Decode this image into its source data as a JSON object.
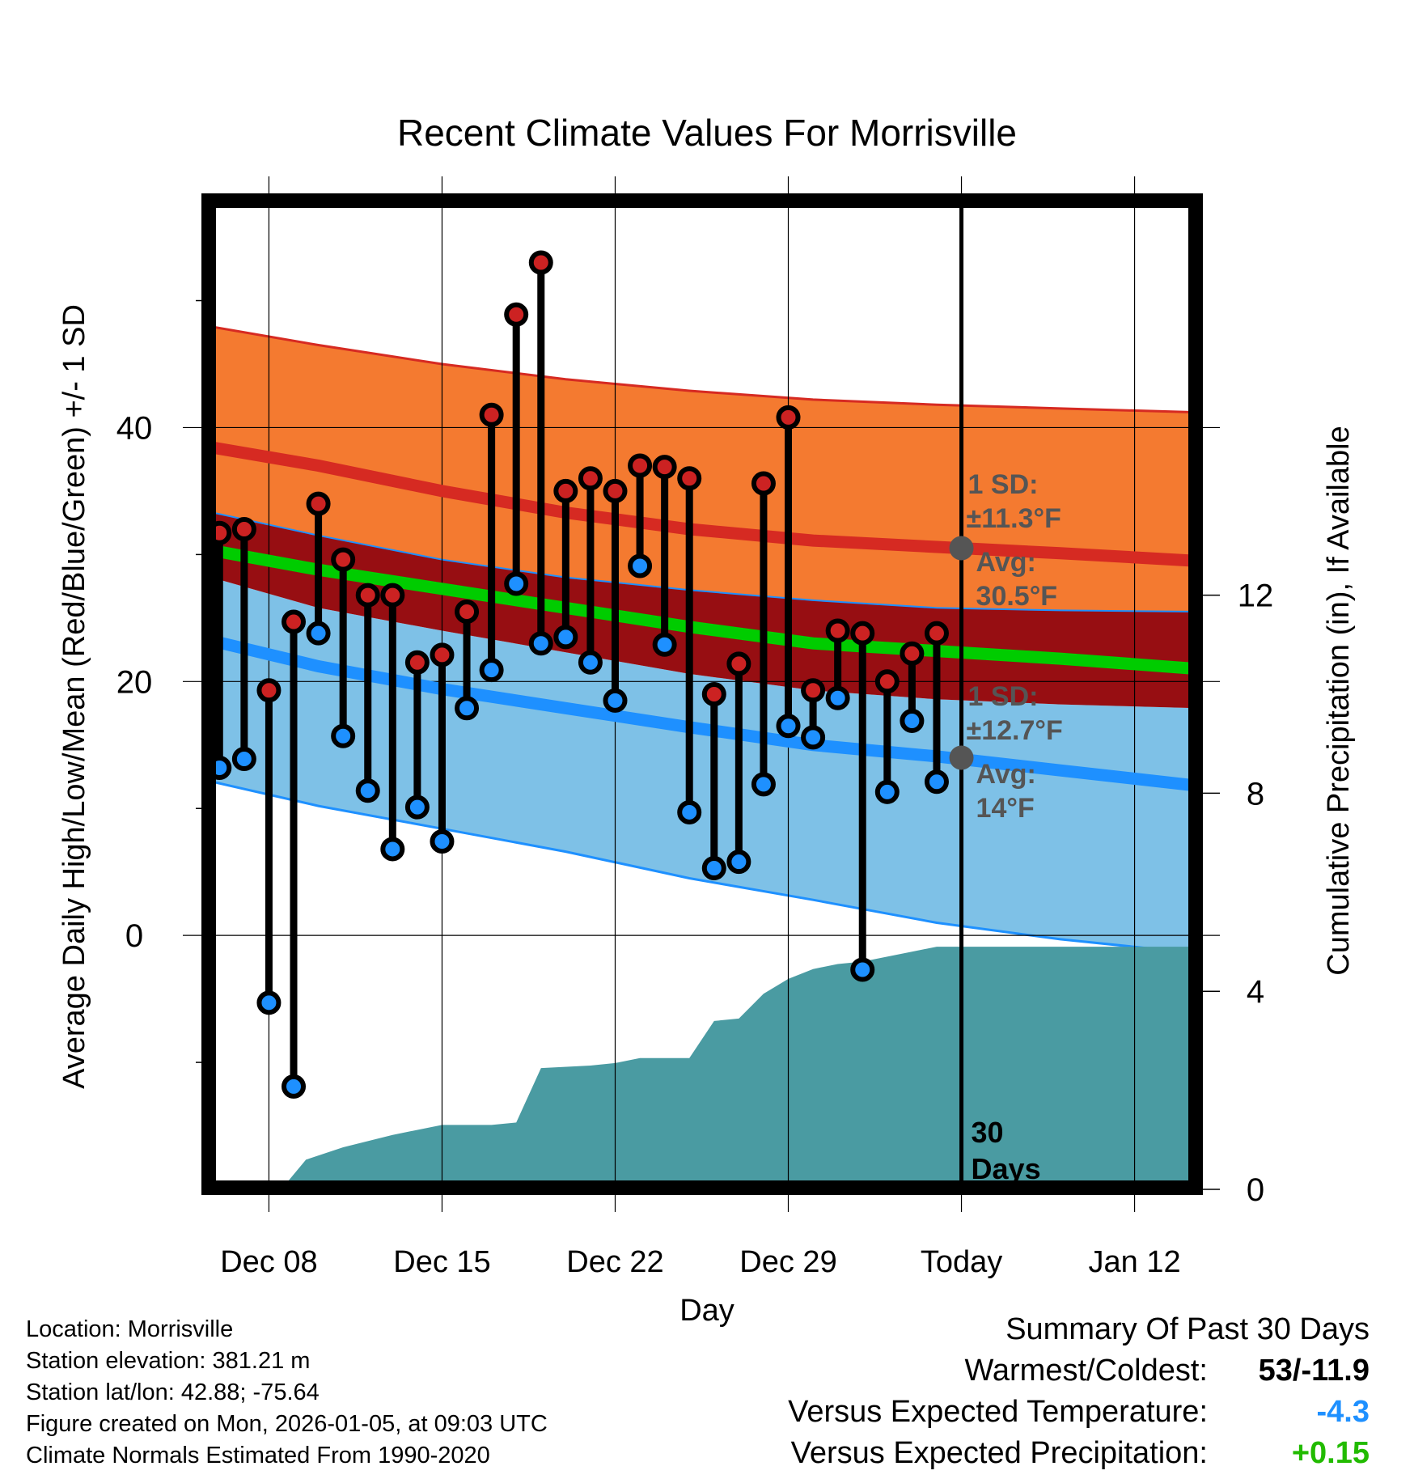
{
  "chart_data": {
    "type": "line",
    "title": "Recent Climate Values For Morrisville",
    "xlabel": "Day",
    "ylabel": "Average Daily High/Low/Mean (Red/Blue/Green) +/- 1 SD",
    "y2label": "Cumulative Precipitation (in), If Available",
    "ylim": [
      -20,
      58
    ],
    "y2lim": [
      0,
      20
    ],
    "xlim": [
      -9.5,
      30.5
    ],
    "yticks": [
      0,
      20,
      40
    ],
    "y2ticks": [
      0,
      4,
      8,
      12
    ],
    "xticks": [
      {
        "day": -7,
        "label": "Dec 08"
      },
      {
        "day": 0,
        "label": "Dec 15"
      },
      {
        "day": 7,
        "label": "Dec 22"
      },
      {
        "day": 14,
        "label": "Dec 29"
      },
      {
        "day": 21,
        "label": "Today"
      },
      {
        "day": 28,
        "label": "Jan 12"
      }
    ],
    "today_day": 21,
    "today_label": [
      "30",
      "Days"
    ],
    "days": [
      -9,
      -8,
      -7,
      -6,
      -5,
      -4,
      -3,
      -2,
      -1,
      0,
      1,
      2,
      3,
      4,
      5,
      6,
      7,
      8,
      9,
      10,
      11,
      12,
      13,
      14,
      15,
      16,
      17,
      18,
      19,
      20
    ],
    "highs": [
      31.7,
      32,
      19.3,
      24.7,
      34,
      29.6,
      26.8,
      26.8,
      21.5,
      22.1,
      25.5,
      41,
      48.9,
      53,
      35,
      36,
      35,
      37,
      36.9,
      36,
      19,
      21.4,
      35.6,
      40.8,
      19.3,
      24,
      23.8,
      20,
      22.2,
      23.8
    ],
    "lows": [
      13.2,
      13.9,
      -5.3,
      -11.9,
      23.8,
      15.7,
      11.4,
      6.8,
      10.1,
      7.4,
      17.9,
      20.9,
      27.7,
      23,
      23.5,
      21.5,
      18.5,
      29.1,
      22.9,
      9.7,
      5.3,
      5.8,
      11.9,
      16.5,
      15.6,
      18.7,
      -2.7,
      11.3,
      16.9,
      12.1
    ],
    "normals_days": [
      -9.5,
      -5,
      0,
      5,
      10,
      15,
      20,
      25,
      30.5
    ],
    "normal_high": [
      38.5,
      37,
      35,
      33.3,
      32,
      31.1,
      30.6,
      30.1,
      29.5
    ],
    "normal_high_plus": [
      48,
      46.5,
      45,
      43.8,
      42.9,
      42.2,
      41.8,
      41.5,
      41.2
    ],
    "normal_high_minus": [
      33.4,
      31.5,
      29.6,
      28.2,
      27.2,
      26.4,
      25.8,
      25.6,
      25.5
    ],
    "normal_mean": [
      30.4,
      28.8,
      27.3,
      25.8,
      24.3,
      23,
      22.4,
      21.8,
      21
    ],
    "normal_low": [
      23.3,
      21.2,
      19.4,
      17.9,
      16.4,
      15,
      14.1,
      13,
      11.8
    ],
    "normal_low_plus": [
      28.3,
      25.8,
      24,
      22.3,
      20.6,
      19.3,
      18.6,
      18.2,
      17.9
    ],
    "normal_low_minus": [
      12.2,
      10.2,
      8.4,
      6.6,
      4.5,
      2.8,
      1,
      -0.3,
      -1.4
    ],
    "precip_days": [
      -6.5,
      -5.5,
      -4,
      -2,
      0,
      2,
      3,
      4,
      6,
      7,
      8,
      9,
      10,
      11,
      12,
      13,
      14,
      15,
      16,
      17,
      18,
      19,
      20,
      21,
      30.5
    ],
    "precip_cum": [
      0,
      0.6,
      0.85,
      1.1,
      1.3,
      1.3,
      1.35,
      2.45,
      2.5,
      2.55,
      2.65,
      2.65,
      2.65,
      3.4,
      3.45,
      3.95,
      4.25,
      4.45,
      4.55,
      4.6,
      4.7,
      4.8,
      4.9,
      4.9,
      4.9
    ],
    "annotations": {
      "high": {
        "sd_label": "1 SD:",
        "sd_value": "±11.3°F",
        "avg_label": "Avg:",
        "avg_value": "30.5°F",
        "value": 30.5
      },
      "low": {
        "sd_label": "1 SD:",
        "sd_value": "±12.7°F",
        "avg_label": "Avg:",
        "avg_value": "14°F",
        "value": 14
      }
    }
  },
  "footer": {
    "location": "Location: Morrisville",
    "elevation": "Station elevation: 381.21 m",
    "latlon": "Station lat/lon: 42.88; -75.64",
    "created": "Figure created on Mon, 2026-01-05, at 09:03 UTC",
    "normals": "Climate Normals Estimated From 1990-2020"
  },
  "summary": {
    "title": "Summary Of Past 30 Days",
    "warmest_label": "Warmest/Coldest:",
    "warmest_value": "53/-11.9",
    "temp_label": "Versus Expected Temperature:",
    "temp_value": "-4.3",
    "precip_label": "Versus Expected Precipitation:",
    "precip_value": "+0.15",
    "temp_color": "#1e90ff",
    "precip_color": "#22bb00"
  },
  "colors": {
    "high_band": "#f47a30",
    "high_line": "#d62a22",
    "overlap_band": "#970e12",
    "low_band": "#7ec1e7",
    "low_line": "#1e90ff",
    "mean_line": "#00cc00",
    "precip_fill": "#4a9ba2",
    "high_dot": "#cc2222",
    "low_dot": "#1e90ff",
    "annotation": "#555555"
  }
}
